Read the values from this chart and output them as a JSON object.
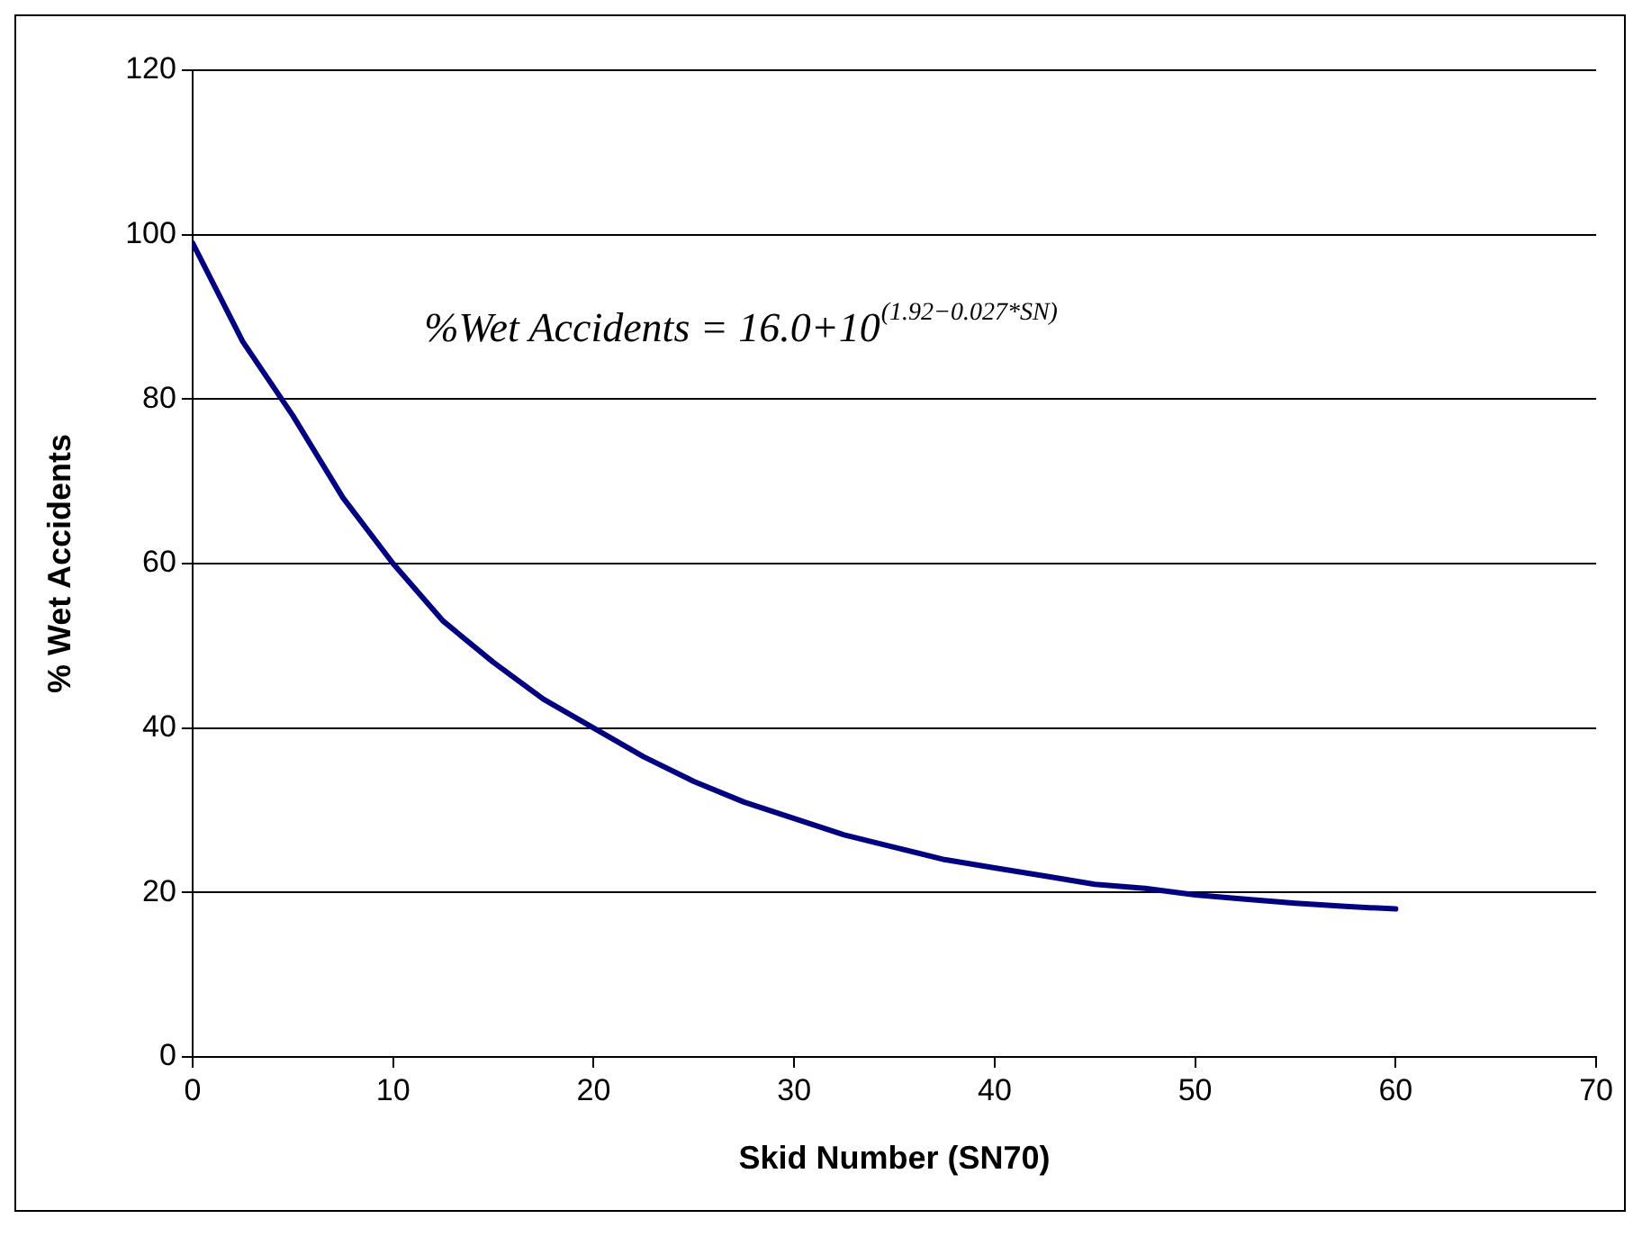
{
  "chart_data": {
    "type": "line",
    "xlabel": "Skid Number (SN70)",
    "ylabel": "% Wet Accidents",
    "annotations": [
      "%Wet Accidents = 16.0+10$^{(1.92−0.027*SN)}$"
    ],
    "x": [
      0,
      2.5,
      5,
      7.5,
      10,
      12.5,
      15,
      17.5,
      20,
      22.5,
      25,
      27.5,
      30,
      32.5,
      35,
      37.5,
      40,
      42.5,
      45,
      47.5,
      50,
      52.5,
      55,
      57.5,
      60
    ],
    "series": [
      {
        "color": "#000080",
        "values": [
          99,
          87,
          78,
          68,
          60,
          53,
          48,
          43.5,
          40,
          36.5,
          33.5,
          31,
          29,
          27,
          25.5,
          24,
          23,
          22,
          21,
          20.5,
          19.7,
          19.2,
          18.7,
          18.3,
          18
        ]
      }
    ],
    "xlim": [
      0,
      70
    ],
    "xticks": [
      0,
      10,
      20,
      30,
      40,
      50,
      60,
      70
    ],
    "ylim": [
      0,
      120
    ],
    "yticks": [
      0,
      20,
      40,
      60,
      80,
      100,
      120
    ],
    "grid": "y",
    "legend": false,
    "marker": "none",
    "line_style": "solid"
  }
}
